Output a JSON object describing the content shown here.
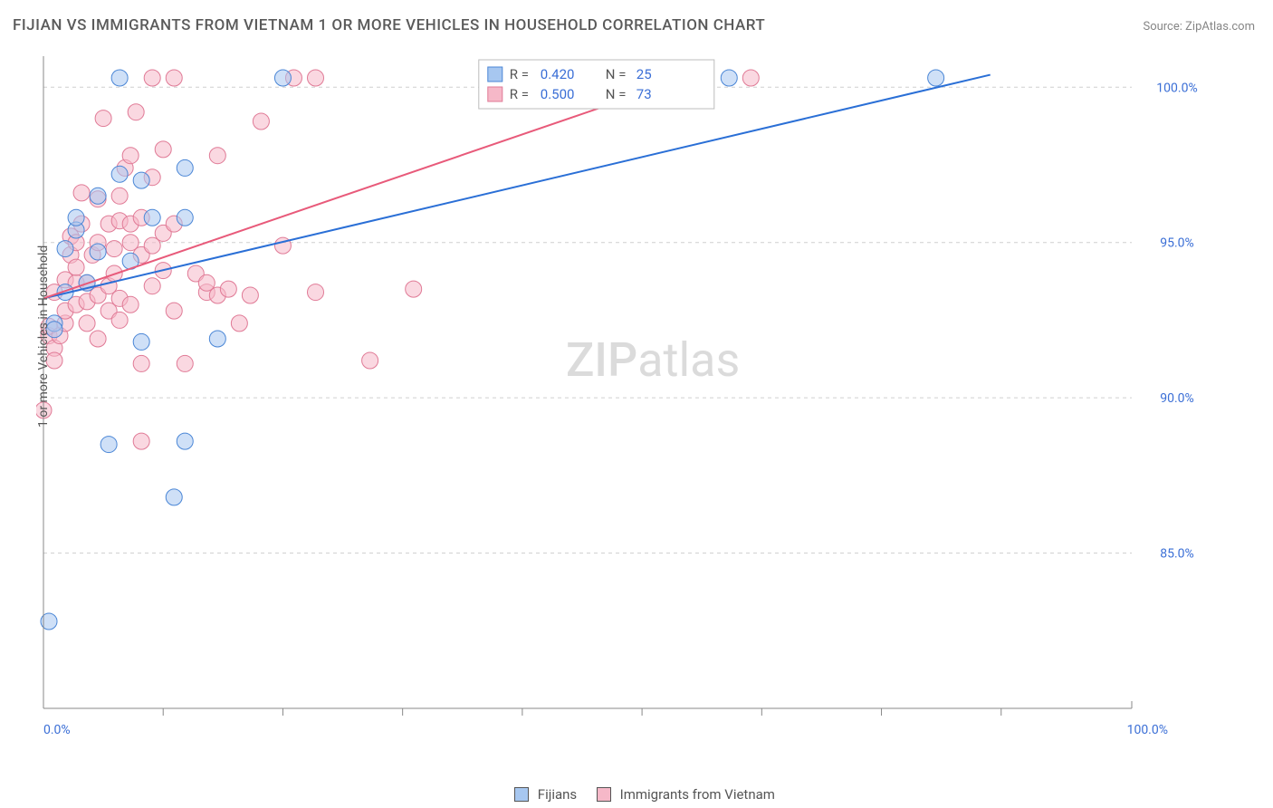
{
  "title": "FIJIAN VS IMMIGRANTS FROM VIETNAM 1 OR MORE VEHICLES IN HOUSEHOLD CORRELATION CHART",
  "source": "Source: ZipAtlas.com",
  "ylabel": "1 or more Vehicles in Household",
  "watermark_a": "ZIP",
  "watermark_b": "atlas",
  "chart": {
    "type": "scatter",
    "x_domain": [
      0,
      100
    ],
    "y_domain": [
      80,
      101
    ],
    "x_ticks": [
      0,
      100
    ],
    "x_tick_labels": [
      "0.0%",
      "100.0%"
    ],
    "x_minor_ticks": [
      11,
      22,
      33,
      44,
      55,
      66,
      77,
      88
    ],
    "y_grid": [
      85,
      90,
      95,
      100
    ],
    "y_grid_labels": [
      "85.0%",
      "90.0%",
      "95.0%",
      "100.0%"
    ],
    "background_color": "#ffffff",
    "grid_color": "#cfcfcf",
    "axis_color": "#888888",
    "series": [
      {
        "name": "Fijians",
        "color_fill": "#a7c7f0",
        "color_stroke": "#4a86d6",
        "R": "0.420",
        "N": "25",
        "trend": {
          "x1": 0,
          "y1": 93.2,
          "x2": 87,
          "y2": 100.4
        },
        "points": [
          [
            0.5,
            82.8
          ],
          [
            1,
            92.4
          ],
          [
            1,
            92.2
          ],
          [
            2,
            93.4
          ],
          [
            2,
            94.8
          ],
          [
            3,
            95.4
          ],
          [
            3,
            95.8
          ],
          [
            4,
            93.7
          ],
          [
            5,
            94.7
          ],
          [
            5,
            96.5
          ],
          [
            6,
            88.5
          ],
          [
            7,
            97.2
          ],
          [
            7,
            100.3
          ],
          [
            8,
            94.4
          ],
          [
            9,
            97.0
          ],
          [
            9,
            91.8
          ],
          [
            10,
            95.8
          ],
          [
            12,
            86.8
          ],
          [
            13,
            88.6
          ],
          [
            13,
            97.4
          ],
          [
            13,
            95.8
          ],
          [
            16,
            91.9
          ],
          [
            22,
            100.3
          ],
          [
            63,
            100.3
          ],
          [
            82,
            100.3
          ]
        ]
      },
      {
        "name": "Immigrants from Vietnam",
        "color_fill": "#f6b8c8",
        "color_stroke": "#e07a96",
        "R": "0.500",
        "N": "73",
        "trend": {
          "x1": 0,
          "y1": 93.2,
          "x2": 60,
          "y2": 100.4
        },
        "points": [
          [
            0,
            89.6
          ],
          [
            0.5,
            92.0
          ],
          [
            0.5,
            92.3
          ],
          [
            1,
            91.6
          ],
          [
            1,
            91.2
          ],
          [
            1,
            93.4
          ],
          [
            1.5,
            92.0
          ],
          [
            2,
            92.4
          ],
          [
            2,
            92.8
          ],
          [
            2,
            93.8
          ],
          [
            2.5,
            94.6
          ],
          [
            2.5,
            95.2
          ],
          [
            3,
            93.0
          ],
          [
            3,
            93.7
          ],
          [
            3,
            94.2
          ],
          [
            3,
            95.0
          ],
          [
            3.5,
            95.6
          ],
          [
            3.5,
            96.6
          ],
          [
            4,
            92.4
          ],
          [
            4,
            93.1
          ],
          [
            4,
            93.7
          ],
          [
            4.5,
            94.6
          ],
          [
            5,
            91.9
          ],
          [
            5,
            93.3
          ],
          [
            5,
            95.0
          ],
          [
            5,
            96.4
          ],
          [
            5.5,
            99.0
          ],
          [
            6,
            92.8
          ],
          [
            6,
            93.6
          ],
          [
            6,
            95.6
          ],
          [
            6.5,
            94.0
          ],
          [
            6.5,
            94.8
          ],
          [
            7,
            92.5
          ],
          [
            7,
            93.2
          ],
          [
            7,
            95.7
          ],
          [
            7,
            96.5
          ],
          [
            7.5,
            97.4
          ],
          [
            8,
            93.0
          ],
          [
            8,
            95.0
          ],
          [
            8,
            95.6
          ],
          [
            8,
            97.8
          ],
          [
            8.5,
            99.2
          ],
          [
            9,
            91.1
          ],
          [
            9,
            94.6
          ],
          [
            9,
            95.8
          ],
          [
            9,
            88.6
          ],
          [
            10,
            93.6
          ],
          [
            10,
            94.9
          ],
          [
            10,
            97.1
          ],
          [
            10,
            100.3
          ],
          [
            11,
            94.1
          ],
          [
            11,
            95.3
          ],
          [
            11,
            98.0
          ],
          [
            12,
            92.8
          ],
          [
            12,
            95.6
          ],
          [
            12,
            100.3
          ],
          [
            13,
            91.1
          ],
          [
            14,
            94.0
          ],
          [
            15,
            93.4
          ],
          [
            15,
            93.7
          ],
          [
            16,
            93.3
          ],
          [
            16,
            97.8
          ],
          [
            17,
            93.5
          ],
          [
            18,
            92.4
          ],
          [
            19,
            93.3
          ],
          [
            20,
            98.9
          ],
          [
            22,
            94.9
          ],
          [
            23,
            100.3
          ],
          [
            25,
            93.4
          ],
          [
            25,
            100.3
          ],
          [
            30,
            91.2
          ],
          [
            34,
            93.5
          ],
          [
            65,
            100.3
          ]
        ]
      }
    ],
    "legend": {
      "R_label": "R =",
      "N_label": "N ="
    },
    "bottom_legend": {
      "a": "Fijians",
      "b": "Immigrants from Vietnam"
    }
  }
}
